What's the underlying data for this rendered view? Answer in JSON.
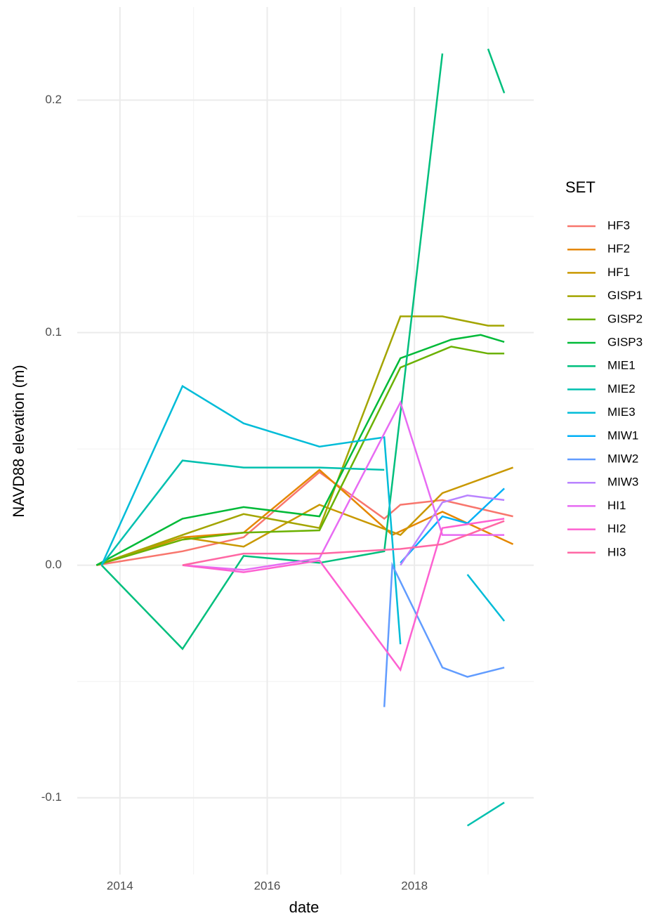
{
  "chart_data": {
    "type": "line",
    "x_label": "date",
    "y_label": "NAVD88 elevation (m)",
    "legend_title": "SET",
    "legend_position": "right",
    "xlim": [
      2013.42,
      2019.62
    ],
    "xticks": [
      2014,
      2016,
      2018
    ],
    "x_minor_grid": [
      2015,
      2017,
      2019
    ],
    "ylim": [
      -0.133,
      0.24
    ],
    "yticks": [
      -0.1,
      {
        "value": 0,
        "label": "0.0"
      },
      0.1,
      0.2
    ],
    "y_minor_grid": [
      -0.05,
      0.05,
      0.15
    ],
    "grid": true,
    "series": [
      {
        "name": "HF3",
        "color": "#F8766D",
        "x": [
          2013.68,
          2014.85,
          2015.68,
          2016.71,
          2017.59,
          2017.81,
          2018.38,
          2019.34
        ],
        "values": [
          0,
          0.006,
          0.012,
          0.04,
          0.02,
          0.026,
          0.028,
          0.021
        ]
      },
      {
        "name": "HF2",
        "color": "#E58700",
        "x": [
          2013.68,
          2014.85,
          2015.68,
          2016.71,
          2017.7,
          2018.38,
          2019.34
        ],
        "values": [
          0,
          0.012,
          0.014,
          0.041,
          0.013,
          0.023,
          0.009
        ]
      },
      {
        "name": "HF1",
        "color": "#C99800",
        "x": [
          2013.68,
          2014.85,
          2015.68,
          2016.71,
          2017.81,
          2018.38,
          2019.34
        ],
        "values": [
          0,
          0.012,
          0.008,
          0.026,
          0.013,
          0.031,
          0.042
        ]
      },
      {
        "name": "GISP1",
        "color": "#A3A500",
        "x": [
          2013.68,
          2014.85,
          2015.68,
          2016.71,
          2017.81,
          2018.38,
          2019.0,
          2019.22
        ],
        "values": [
          0,
          0.013,
          0.022,
          0.016,
          0.107,
          0.107,
          0.103,
          0.103
        ]
      },
      {
        "name": "GISP2",
        "color": "#6BB100",
        "x": [
          2013.68,
          2014.85,
          2015.68,
          2016.71,
          2017.81,
          2018.5,
          2019.0,
          2019.22
        ],
        "values": [
          0,
          0.011,
          0.014,
          0.015,
          0.085,
          0.094,
          0.091,
          0.091
        ]
      },
      {
        "name": "GISP3",
        "color": "#00BA38",
        "x": [
          2013.68,
          2014.85,
          2015.68,
          2016.71,
          2017.81,
          2018.5,
          2018.9,
          2019.22
        ],
        "values": [
          0,
          0.02,
          0.025,
          0.021,
          0.089,
          0.097,
          0.099,
          0.096
        ]
      },
      {
        "name": "MIE1",
        "color": "#00BF7D",
        "x": [
          2013.75,
          2014.85,
          2015.68,
          2016.71,
          2017.59,
          2018.38,
          2018.7,
          2019.0,
          2019.22
        ],
        "values": [
          0,
          -0.036,
          0.004,
          0.001,
          0.006,
          0.22,
          null,
          0.222,
          0.203
        ]
      },
      {
        "name": "MIE2",
        "color": "#00C0AF",
        "x": [
          2013.75,
          2014.85,
          2015.68,
          2016.71,
          2017.59,
          2018.2,
          2018.72,
          2019.22
        ],
        "values": [
          0,
          0.045,
          0.042,
          0.042,
          0.041,
          null,
          -0.112,
          -0.102
        ]
      },
      {
        "name": "MIE3",
        "color": "#00BCD8",
        "x": [
          2013.75,
          2014.85,
          2015.68,
          2016.71,
          2017.59,
          2017.81,
          2018.2,
          2018.72,
          2019.22
        ],
        "values": [
          0,
          0.077,
          0.061,
          0.051,
          0.055,
          -0.034,
          null,
          -0.004,
          -0.024
        ]
      },
      {
        "name": "MIW1",
        "color": "#00B0F6",
        "x": [
          2017.81,
          2018.38,
          2018.72,
          2019.22
        ],
        "values": [
          0.001,
          0.021,
          0.018,
          0.033
        ]
      },
      {
        "name": "MIW2",
        "color": "#619CFF",
        "x": [
          2017.59,
          2017.7,
          2018.38,
          2018.72,
          2019.22
        ],
        "values": [
          -0.061,
          0.0,
          -0.044,
          -0.048,
          -0.044
        ]
      },
      {
        "name": "MIW3",
        "color": "#B983FF",
        "x": [
          2017.81,
          2018.38,
          2018.72,
          2019.22
        ],
        "values": [
          0.0,
          0.027,
          0.03,
          0.028
        ]
      },
      {
        "name": "HI1",
        "color": "#E76BF3",
        "x": [
          2014.85,
          2015.68,
          2016.71,
          2017.81,
          2018.38,
          2019.22
        ],
        "values": [
          0,
          -0.002,
          0.003,
          0.07,
          0.013,
          0.013
        ]
      },
      {
        "name": "HI2",
        "color": "#FD61D1",
        "x": [
          2014.85,
          2015.68,
          2016.71,
          2017.81,
          2018.38,
          2019.22
        ],
        "values": [
          0,
          -0.003,
          0.002,
          -0.045,
          0.016,
          0.02
        ]
      },
      {
        "name": "HI3",
        "color": "#FF67A4",
        "x": [
          2014.85,
          2015.68,
          2016.71,
          2017.81,
          2018.38,
          2019.22
        ],
        "values": [
          0,
          0.005,
          0.005,
          0.007,
          0.009,
          0.019
        ]
      }
    ]
  }
}
